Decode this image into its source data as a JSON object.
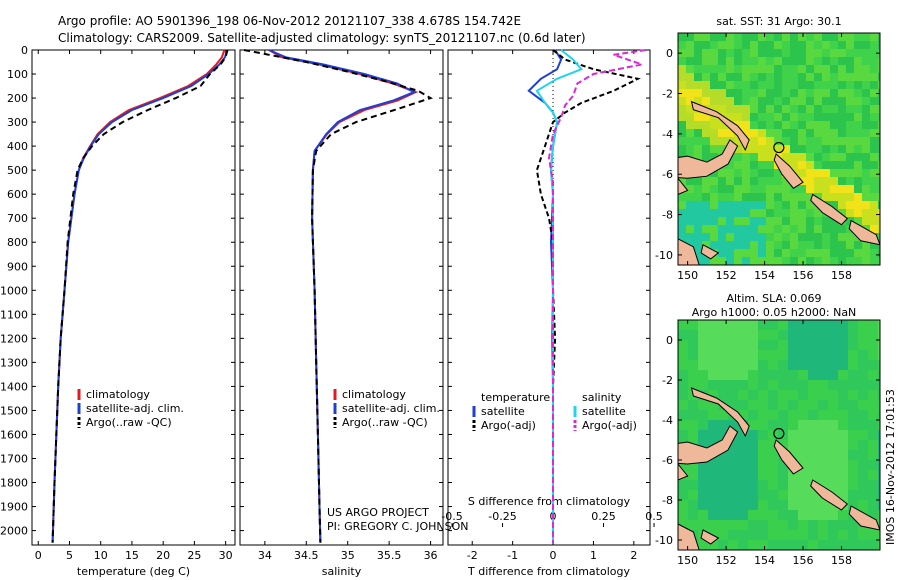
{
  "header": {
    "line1": "Argo profile: AO 5901396_198 06-Nov-2012 20121107_338 4.678S 154.742E",
    "line2": "Climatology: CARS2009. Satellite-adjusted climatology: synTS_20121107.nc (0.6d later)"
  },
  "colors": {
    "climatology": "#e41a1c",
    "satellite": "#1f3fd6",
    "argo": "#000000",
    "sat_salinity": "#22d3ee",
    "argo_salinity": "#d62bd6",
    "land": "#f0b89a",
    "sea": "#33cc33"
  },
  "credits": {
    "project": "US ARGO PROJECT",
    "pi": "PI: GREGORY C. JOHNSON",
    "stamp": "IMOS 16-Nov-2012 17:01:53"
  },
  "chart_data": [
    {
      "type": "line",
      "id": "temperature",
      "xlabel": "temperature (deg C)",
      "ylabel": "",
      "xlim": [
        -1,
        31.5
      ],
      "ylim": [
        2060,
        0
      ],
      "xticks": [
        0,
        5,
        10,
        15,
        20,
        25,
        30
      ],
      "xtick_labels": [
        "0",
        "5",
        "10",
        "15",
        "20",
        "25",
        "30"
      ],
      "yticks": [
        0,
        100,
        200,
        300,
        400,
        500,
        600,
        700,
        800,
        900,
        1000,
        1100,
        1200,
        1300,
        1400,
        1500,
        1600,
        1700,
        1800,
        1900,
        2000
      ],
      "ytick_labels": [
        "0",
        "100",
        "200",
        "300",
        "400",
        "500",
        "600",
        "700",
        "800",
        "900",
        "1000",
        "1100",
        "1200",
        "1300",
        "1400",
        "1500",
        "1600",
        "1700",
        "1800",
        "1900",
        "2000"
      ],
      "legend": [
        "climatology",
        "satellite-adj. clim.",
        "Argo(..raw -QC)"
      ],
      "series": [
        {
          "name": "climatology",
          "color": "#e41a1c",
          "dash": "none",
          "x": [
            29.8,
            29.4,
            28.5,
            27.0,
            24.0,
            19.5,
            14.5,
            11.5,
            9.5,
            8.3,
            7.2,
            6.5,
            5.8,
            4.8,
            4.2,
            3.6,
            3.2,
            2.6,
            2.3
          ],
          "y": [
            0,
            30,
            60,
            100,
            150,
            200,
            250,
            300,
            350,
            400,
            450,
            500,
            600,
            800,
            1000,
            1200,
            1400,
            1800,
            2050
          ]
        },
        {
          "name": "satellite-adj. clim.",
          "color": "#1f3fd6",
          "dash": "none",
          "x": [
            30.2,
            29.9,
            29.0,
            27.3,
            24.5,
            20.0,
            15.0,
            11.8,
            9.7,
            8.4,
            7.3,
            6.5,
            5.8,
            4.8,
            4.2,
            3.6,
            3.2,
            2.6,
            2.3
          ],
          "y": [
            0,
            30,
            60,
            100,
            150,
            200,
            250,
            300,
            350,
            400,
            450,
            500,
            600,
            800,
            1000,
            1200,
            1400,
            1800,
            2050
          ]
        },
        {
          "name": "Argo(..raw -QC)",
          "color": "#000000",
          "dash": "6 4",
          "x": [
            30.3,
            30.0,
            29.2,
            27.5,
            26.0,
            22.0,
            17.5,
            13.5,
            10.5,
            8.6,
            7.2,
            6.3,
            5.6,
            4.7,
            4.2,
            3.6,
            3.2,
            2.6,
            2.3
          ],
          "y": [
            0,
            30,
            60,
            100,
            150,
            200,
            250,
            300,
            350,
            400,
            450,
            500,
            600,
            800,
            1000,
            1200,
            1400,
            1800,
            2050
          ]
        }
      ]
    },
    {
      "type": "line",
      "id": "salinity",
      "xlabel": "salinity",
      "xlim": [
        33.7,
        36.15
      ],
      "ylim": [
        2060,
        0
      ],
      "xticks": [
        34,
        34.5,
        35,
        35.5,
        36
      ],
      "xtick_labels": [
        "34",
        "34.5",
        "35",
        "35.5",
        "36"
      ],
      "legend": [
        "climatology",
        "satellite-adj. clim.",
        "Argo(..raw -QC)"
      ],
      "series": [
        {
          "name": "climatology",
          "color": "#e41a1c",
          "dash": "none",
          "x": [
            34.05,
            34.2,
            34.65,
            35.15,
            35.55,
            35.82,
            35.6,
            35.2,
            34.9,
            34.75,
            34.6,
            34.58,
            34.57,
            34.6,
            34.62,
            34.64,
            34.66,
            34.67
          ],
          "y": [
            0,
            30,
            60,
            100,
            140,
            175,
            210,
            250,
            300,
            350,
            420,
            500,
            700,
            1000,
            1300,
            1600,
            1900,
            2050
          ]
        },
        {
          "name": "satellite-adj. clim.",
          "color": "#1f3fd6",
          "dash": "none",
          "x": [
            34.05,
            34.25,
            34.7,
            35.2,
            35.6,
            35.8,
            35.55,
            35.15,
            34.88,
            34.74,
            34.6,
            34.58,
            34.57,
            34.6,
            34.62,
            34.64,
            34.66,
            34.67
          ],
          "y": [
            0,
            30,
            60,
            100,
            140,
            175,
            210,
            250,
            300,
            350,
            420,
            500,
            700,
            1000,
            1300,
            1600,
            1900,
            2050
          ]
        },
        {
          "name": "Argo(..raw -QC)",
          "color": "#000000",
          "dash": "6 4",
          "x": [
            33.75,
            34.05,
            34.5,
            35.0,
            35.45,
            35.85,
            36.0,
            35.65,
            35.1,
            34.8,
            34.62,
            34.58,
            34.57,
            34.6,
            34.62,
            34.64,
            34.66,
            34.67
          ],
          "y": [
            0,
            20,
            50,
            90,
            130,
            170,
            200,
            240,
            300,
            350,
            420,
            500,
            700,
            1000,
            1300,
            1600,
            1900,
            2050
          ]
        }
      ]
    },
    {
      "type": "line",
      "id": "difference",
      "xlabel": "T difference from climatology",
      "xlabel_top": "S difference from climatology",
      "xlim": [
        -2.6,
        2.4
      ],
      "ylim": [
        2060,
        0
      ],
      "xticks": [
        -2,
        -1,
        0,
        1,
        2
      ],
      "xtick_labels": [
        "-2",
        "-1",
        "0",
        "1",
        "2"
      ],
      "sticks": [
        -2.5,
        -1.25,
        0,
        1.25,
        2.5
      ],
      "stick_labels": [
        "-0.5",
        "-0.25",
        "0",
        "0.25",
        "0.5"
      ],
      "legend_groups": [
        "temperature",
        "salinity"
      ],
      "legend": [
        "satellite",
        "Argo(-adj)",
        "satellite",
        "Argo(-adj)"
      ],
      "series": [
        {
          "name": "T satellite",
          "color": "#1f3fd6",
          "dash": "none",
          "x": [
            0.05,
            0.2,
            0.1,
            -0.3,
            -0.6,
            -0.2,
            0.0,
            0.1,
            0.0,
            -0.05,
            0.0,
            -0.05,
            0.0,
            -0.02,
            0.0,
            0.0,
            0.0,
            0.0
          ],
          "y": [
            0,
            40,
            80,
            120,
            170,
            220,
            260,
            300,
            400,
            500,
            600,
            800,
            1000,
            1200,
            1400,
            1600,
            1800,
            2050
          ]
        },
        {
          "name": "T Argo(-adj)",
          "color": "#000000",
          "dash": "5 3",
          "x": [
            0.0,
            0.3,
            1.0,
            2.1,
            1.5,
            0.7,
            0.3,
            0.0,
            -0.2,
            -0.4,
            -0.3,
            -0.1,
            0.0,
            0.0,
            0.05,
            0.0,
            0.0,
            0.0
          ],
          "y": [
            0,
            40,
            80,
            120,
            170,
            220,
            260,
            300,
            400,
            500,
            600,
            700,
            800,
            1000,
            1200,
            1400,
            1700,
            2050
          ]
        },
        {
          "name": "S satellite",
          "color": "#22d3ee",
          "dash": "none",
          "x": [
            0.2,
            0.5,
            0.7,
            0.1,
            -0.4,
            -0.2,
            0.0,
            0.1,
            0.0,
            -0.05,
            0.0,
            0.0,
            0.0,
            0.0,
            0.0,
            0.0,
            0.0,
            0.0
          ],
          "y": [
            0,
            40,
            80,
            120,
            170,
            220,
            260,
            300,
            400,
            500,
            600,
            800,
            1000,
            1200,
            1400,
            1600,
            1800,
            2050
          ]
        },
        {
          "name": "S Argo(-adj)",
          "color": "#d62bd6",
          "dash": "6 3",
          "x": [
            2.3,
            1.5,
            2.2,
            1.0,
            0.6,
            0.5,
            0.3,
            0.2,
            0.0,
            -0.1,
            0.0,
            0.0,
            0.0,
            0.0,
            0.0,
            0.0,
            0.0,
            0.0
          ],
          "y": [
            0,
            20,
            60,
            100,
            140,
            190,
            230,
            280,
            350,
            450,
            550,
            700,
            900,
            1100,
            1300,
            1500,
            1700,
            2050
          ]
        }
      ]
    },
    {
      "type": "heatmap",
      "id": "sst-map",
      "title": "sat. SST: 31 Argo: 30.1",
      "xlim": [
        149.5,
        160.0
      ],
      "ylim": [
        -10.5,
        1.0
      ],
      "xticks": [
        150,
        152,
        154,
        156,
        158
      ],
      "xtick_labels": [
        "150",
        "152",
        "154",
        "156",
        "158"
      ],
      "yticks": [
        0,
        -2,
        -4,
        -6,
        -8,
        -10
      ],
      "ytick_labels": [
        "0",
        "-2",
        "-4",
        "-6",
        "-8",
        "-10"
      ],
      "marker": {
        "lon": 154.742,
        "lat": -4.678
      }
    },
    {
      "type": "heatmap",
      "id": "sla-map",
      "title_line1": "Altim. SLA: 0.069",
      "title_line2": "Argo h1000: 0.05 h2000: NaN",
      "xlim": [
        149.5,
        160.0
      ],
      "ylim": [
        -10.5,
        1.0
      ],
      "xticks": [
        150,
        152,
        154,
        156,
        158
      ],
      "xtick_labels": [
        "150",
        "152",
        "154",
        "156",
        "158"
      ],
      "yticks": [
        0,
        -2,
        -4,
        -6,
        -8,
        -10
      ],
      "ytick_labels": [
        "0",
        "-2",
        "-4",
        "-6",
        "-8",
        "-10"
      ],
      "marker": {
        "lon": 154.742,
        "lat": -4.678
      }
    }
  ]
}
